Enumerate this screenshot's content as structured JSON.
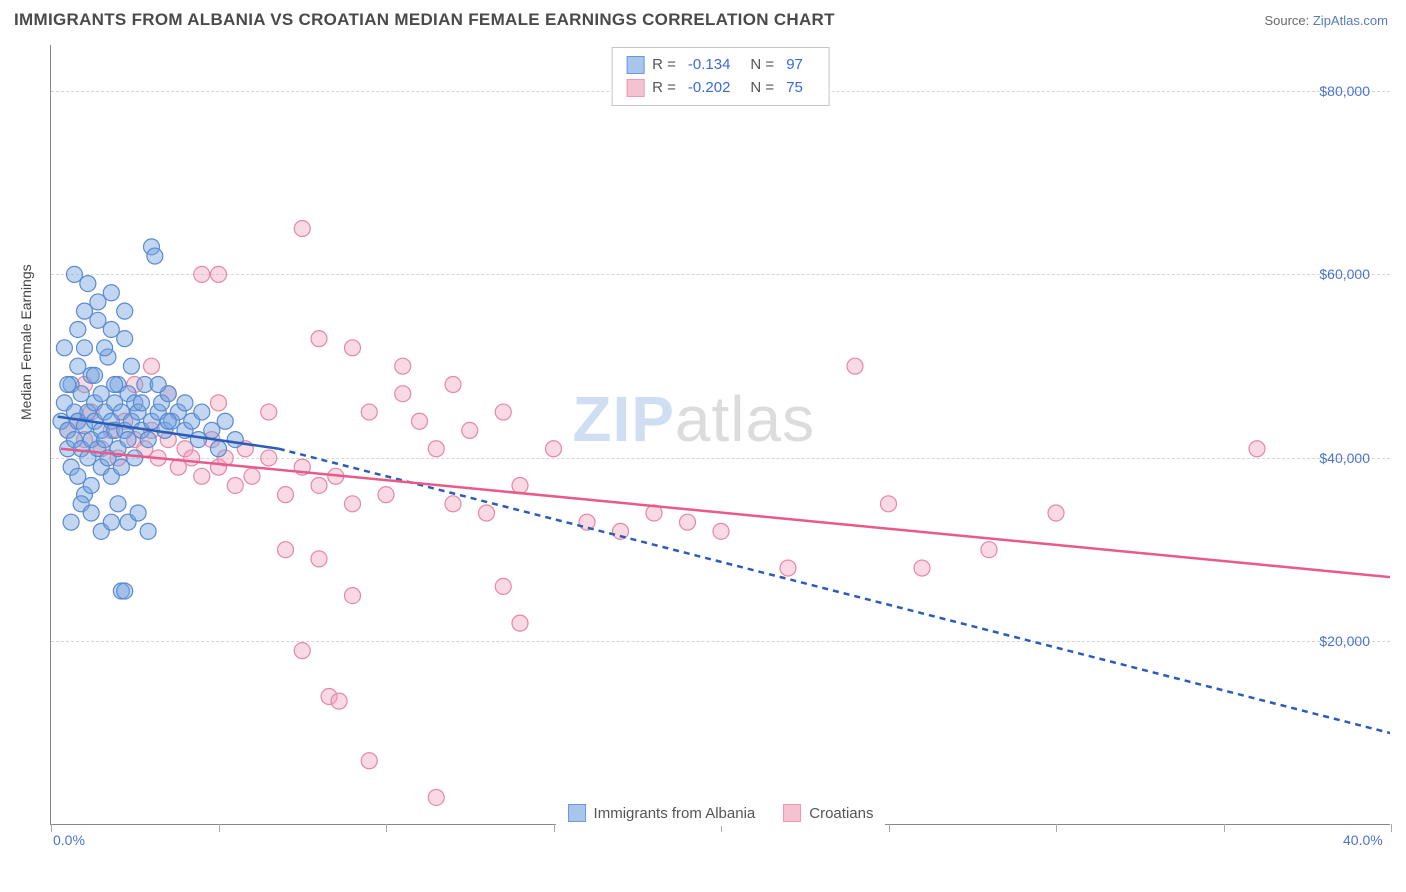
{
  "header": {
    "title": "IMMIGRANTS FROM ALBANIA VS CROATIAN MEDIAN FEMALE EARNINGS CORRELATION CHART",
    "source_prefix": "Source: ",
    "source_name": "ZipAtlas.com"
  },
  "axes": {
    "ylabel": "Median Female Earnings",
    "xlim": [
      0,
      40
    ],
    "ylim": [
      0,
      85000
    ],
    "x_ticks": [
      0,
      5,
      10,
      15,
      20,
      25,
      30,
      35,
      40
    ],
    "x_tick_labels": {
      "0": "0.0%",
      "40": "40.0%"
    },
    "y_gridlines": [
      20000,
      40000,
      60000,
      80000
    ],
    "y_tick_labels": [
      "$20,000",
      "$40,000",
      "$60,000",
      "$80,000"
    ],
    "grid_color": "#d5d5d5",
    "axis_color": "#888888"
  },
  "watermark": {
    "zip": "ZIP",
    "atlas": "atlas"
  },
  "series": {
    "albania": {
      "label": "Immigrants from Albania",
      "color_fill": "rgba(120,165,225,0.45)",
      "color_stroke": "#5a8bd0",
      "swatch_fill": "#a8c5ec",
      "swatch_border": "#6a9adc",
      "R": "-0.134",
      "N": "97",
      "trend_solid": {
        "x1": 0.2,
        "y1": 44500,
        "x2": 6.8,
        "y2": 41000
      },
      "trend_dash": {
        "x1": 6.8,
        "y1": 41000,
        "x2": 40,
        "y2": 10000
      },
      "points": [
        [
          0.3,
          44000
        ],
        [
          0.4,
          46000
        ],
        [
          0.5,
          43000
        ],
        [
          0.5,
          41000
        ],
        [
          0.6,
          48000
        ],
        [
          0.6,
          39000
        ],
        [
          0.7,
          45000
        ],
        [
          0.7,
          42000
        ],
        [
          0.8,
          50000
        ],
        [
          0.8,
          38000
        ],
        [
          0.8,
          44000
        ],
        [
          0.9,
          47000
        ],
        [
          0.9,
          41000
        ],
        [
          1.0,
          43500
        ],
        [
          1.0,
          52000
        ],
        [
          1.0,
          36000
        ],
        [
          1.1,
          45000
        ],
        [
          1.1,
          40000
        ],
        [
          1.2,
          49000
        ],
        [
          1.2,
          42000
        ],
        [
          1.2,
          37000
        ],
        [
          1.3,
          46000
        ],
        [
          1.3,
          44000
        ],
        [
          1.4,
          41000
        ],
        [
          1.4,
          55000
        ],
        [
          1.5,
          43000
        ],
        [
          1.5,
          39000
        ],
        [
          1.5,
          47000
        ],
        [
          1.6,
          42000
        ],
        [
          1.6,
          45000
        ],
        [
          1.7,
          40000
        ],
        [
          1.7,
          51000
        ],
        [
          1.8,
          44000
        ],
        [
          1.8,
          38000
        ],
        [
          1.8,
          58000
        ],
        [
          1.9,
          43000
        ],
        [
          1.9,
          46000
        ],
        [
          2.0,
          41000
        ],
        [
          2.0,
          48000
        ],
        [
          2.1,
          45000
        ],
        [
          2.1,
          39000
        ],
        [
          2.2,
          43000
        ],
        [
          2.2,
          53000
        ],
        [
          2.3,
          42000
        ],
        [
          2.3,
          47000
        ],
        [
          2.4,
          44000
        ],
        [
          2.5,
          40000
        ],
        [
          2.5,
          46000
        ],
        [
          2.6,
          45000
        ],
        [
          2.7,
          43000
        ],
        [
          2.8,
          48000
        ],
        [
          2.9,
          42000
        ],
        [
          3.0,
          44000
        ],
        [
          3.0,
          63000
        ],
        [
          3.1,
          62000
        ],
        [
          3.2,
          45000
        ],
        [
          3.3,
          46000
        ],
        [
          3.4,
          43000
        ],
        [
          3.5,
          47000
        ],
        [
          3.6,
          44000
        ],
        [
          3.8,
          45000
        ],
        [
          4.0,
          43000
        ],
        [
          4.0,
          46000
        ],
        [
          4.2,
          44000
        ],
        [
          4.4,
          42000
        ],
        [
          4.5,
          45000
        ],
        [
          4.8,
          43000
        ],
        [
          5.0,
          41000
        ],
        [
          5.2,
          44000
        ],
        [
          5.5,
          42000
        ],
        [
          0.6,
          33000
        ],
        [
          0.9,
          35000
        ],
        [
          1.2,
          34000
        ],
        [
          1.5,
          32000
        ],
        [
          1.8,
          33000
        ],
        [
          2.0,
          35000
        ],
        [
          2.3,
          33000
        ],
        [
          2.6,
          34000
        ],
        [
          2.9,
          32000
        ],
        [
          1.0,
          56000
        ],
        [
          1.4,
          57000
        ],
        [
          1.8,
          54000
        ],
        [
          2.2,
          56000
        ],
        [
          0.7,
          60000
        ],
        [
          1.1,
          59000
        ],
        [
          2.1,
          25500
        ],
        [
          2.2,
          25500
        ],
        [
          0.4,
          52000
        ],
        [
          0.8,
          54000
        ],
        [
          1.6,
          52000
        ],
        [
          2.4,
          50000
        ],
        [
          3.2,
          48000
        ],
        [
          1.3,
          49000
        ],
        [
          0.5,
          48000
        ],
        [
          1.9,
          48000
        ],
        [
          2.7,
          46000
        ],
        [
          3.5,
          44000
        ]
      ]
    },
    "croatians": {
      "label": "Croatians",
      "color_fill": "rgba(240,160,185,0.4)",
      "color_stroke": "#e688a5",
      "swatch_fill": "#f5c2d2",
      "swatch_border": "#eb9ab5",
      "R": "-0.202",
      "N": "75",
      "trend_solid": {
        "x1": 0.3,
        "y1": 41000,
        "x2": 40,
        "y2": 27000
      },
      "points": [
        [
          0.5,
          43000
        ],
        [
          0.8,
          44000
        ],
        [
          1.0,
          42000
        ],
        [
          1.2,
          45000
        ],
        [
          1.5,
          41000
        ],
        [
          1.8,
          43000
        ],
        [
          2.0,
          40000
        ],
        [
          2.2,
          44000
        ],
        [
          2.5,
          42000
        ],
        [
          2.8,
          41000
        ],
        [
          3.0,
          43000
        ],
        [
          3.2,
          40000
        ],
        [
          3.5,
          42000
        ],
        [
          3.8,
          39000
        ],
        [
          4.0,
          41000
        ],
        [
          4.2,
          40000
        ],
        [
          4.5,
          38000
        ],
        [
          4.8,
          42000
        ],
        [
          5.0,
          39000
        ],
        [
          5.2,
          40000
        ],
        [
          5.5,
          37000
        ],
        [
          5.8,
          41000
        ],
        [
          6.0,
          38000
        ],
        [
          6.5,
          40000
        ],
        [
          7.0,
          36000
        ],
        [
          7.5,
          39000
        ],
        [
          8.0,
          37000
        ],
        [
          8.5,
          38000
        ],
        [
          9.0,
          35000
        ],
        [
          9.5,
          45000
        ],
        [
          10.0,
          36000
        ],
        [
          10.5,
          47000
        ],
        [
          11.0,
          44000
        ],
        [
          11.5,
          41000
        ],
        [
          12.0,
          35000
        ],
        [
          12.5,
          43000
        ],
        [
          13.0,
          34000
        ],
        [
          13.5,
          45000
        ],
        [
          14.0,
          37000
        ],
        [
          15.0,
          41000
        ],
        [
          16.0,
          33000
        ],
        [
          17.0,
          32000
        ],
        [
          18.0,
          34000
        ],
        [
          19.0,
          33000
        ],
        [
          20.0,
          32000
        ],
        [
          22.0,
          28000
        ],
        [
          24.0,
          50000
        ],
        [
          25.0,
          35000
        ],
        [
          26.0,
          28000
        ],
        [
          28.0,
          30000
        ],
        [
          30.0,
          34000
        ],
        [
          36.0,
          41000
        ],
        [
          4.5,
          60000
        ],
        [
          7.5,
          65000
        ],
        [
          8.0,
          53000
        ],
        [
          9.0,
          52000
        ],
        [
          10.5,
          50000
        ],
        [
          12.0,
          48000
        ],
        [
          3.5,
          47000
        ],
        [
          5.0,
          46000
        ],
        [
          6.5,
          45000
        ],
        [
          8.0,
          29000
        ],
        [
          8.3,
          14000
        ],
        [
          8.6,
          13500
        ],
        [
          9.5,
          7000
        ],
        [
          11.5,
          3000
        ],
        [
          14.0,
          22000
        ],
        [
          7.0,
          30000
        ],
        [
          7.5,
          19000
        ],
        [
          9.0,
          25000
        ],
        [
          5.0,
          60000
        ],
        [
          13.5,
          26000
        ],
        [
          3.0,
          50000
        ],
        [
          2.5,
          48000
        ],
        [
          1.0,
          48000
        ]
      ]
    }
  },
  "chart_style": {
    "marker_radius": 8,
    "marker_stroke_width": 1.2,
    "trend_width": 2.5,
    "background": "#ffffff"
  }
}
